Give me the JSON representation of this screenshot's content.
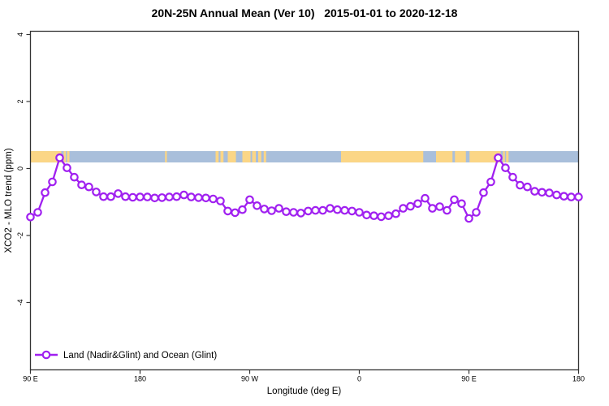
{
  "chart_data": {
    "type": "line",
    "title": "20N-25N Annual Mean (Ver 10)   2015-01-01 to 2020-12-18",
    "xlabel": "Longitude (deg E)",
    "ylabel": "XCO2 - MLO trend (ppm)",
    "legend": {
      "label": "Land (Nadir&Glint) and Ocean (Glint)",
      "position": "bottom-left",
      "marker": "open-circle-on-line"
    },
    "x_axis": {
      "unit": "degrees east, wrapped (total span 450 deg)",
      "range_deg": [
        0,
        450
      ],
      "ticks": [
        {
          "label": "90 E",
          "deg": 0
        },
        {
          "label": "180",
          "deg": 90
        },
        {
          "label": "90 W",
          "deg": 180
        },
        {
          "label": "0",
          "deg": 270
        },
        {
          "label": "90 E",
          "deg": 360
        },
        {
          "label": "180",
          "deg": 450
        }
      ]
    },
    "y_axis": {
      "range": [
        -6.0,
        4.1
      ],
      "ticks": [
        -4,
        -2,
        0,
        2,
        4
      ]
    },
    "series": [
      {
        "name": "Land (Nadir&Glint) and Ocean (Glint)",
        "x_start_deg": 0,
        "x_step_deg": 6,
        "values": [
          -1.45,
          -1.31,
          -0.72,
          -0.4,
          0.32,
          0.02,
          -0.26,
          -0.49,
          -0.55,
          -0.7,
          -0.84,
          -0.84,
          -0.75,
          -0.84,
          -0.86,
          -0.85,
          -0.85,
          -0.88,
          -0.87,
          -0.85,
          -0.84,
          -0.79,
          -0.85,
          -0.87,
          -0.88,
          -0.91,
          -0.97,
          -1.27,
          -1.32,
          -1.23,
          -0.93,
          -1.11,
          -1.21,
          -1.26,
          -1.19,
          -1.29,
          -1.31,
          -1.33,
          -1.27,
          -1.25,
          -1.25,
          -1.19,
          -1.23,
          -1.25,
          -1.27,
          -1.31,
          -1.39,
          -1.41,
          -1.44,
          -1.41,
          -1.35,
          -1.19,
          -1.13,
          -1.05,
          -0.89,
          -1.19,
          -1.14,
          -1.25,
          -0.93,
          -1.05,
          -1.49,
          -1.31,
          -0.72,
          -0.4,
          0.32,
          0.02,
          -0.26,
          -0.5,
          -0.55,
          -0.68,
          -0.71,
          -0.73,
          -0.79,
          -0.83,
          -0.85,
          -0.85
        ]
      }
    ],
    "land_ocean_band": {
      "description": "horizontal strip showing land (orange) vs ocean (blue) along 20N-25N",
      "y_range_ppm": [
        0.18,
        0.52
      ],
      "land_segments_deg": [
        [
          0,
          25.3
        ],
        [
          27.3,
          29
        ],
        [
          30,
          32
        ],
        [
          110.5,
          112
        ],
        [
          152,
          154.5
        ],
        [
          156,
          158.5
        ],
        [
          162,
          168.7
        ],
        [
          174,
          180.7
        ],
        [
          182,
          185
        ],
        [
          187,
          189.5
        ],
        [
          191.5,
          193.5
        ],
        [
          255,
          322.5
        ],
        [
          333,
          346.5
        ],
        [
          348.5,
          357.5
        ],
        [
          360.5,
          386
        ],
        [
          388,
          389.5
        ],
        [
          390.5,
          392.5
        ]
      ]
    },
    "colors": {
      "line": "#A020F0",
      "marker_fill": "#FFFFFF",
      "land": "#FBD686",
      "ocean": "#A9BFDB",
      "box": "#333333",
      "text": "#000000",
      "background": "#FFFFFF"
    },
    "marker": {
      "shape": "circle",
      "radius_px": 4.2,
      "stroke_px": 2.2
    }
  }
}
